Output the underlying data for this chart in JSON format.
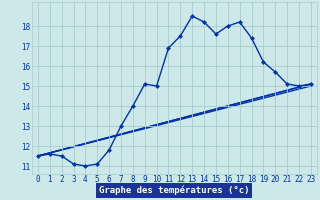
{
  "xlabel": "Graphe des températures (°c)",
  "bg_color": "#cce8e8",
  "grid_color": "#aacccc",
  "line_color": "#0033aa",
  "line_width": 1.0,
  "marker": "D",
  "marker_size": 2.5,
  "xlim": [
    -0.5,
    23.5
  ],
  "ylim": [
    10.6,
    19.2
  ],
  "xticks": [
    0,
    1,
    2,
    3,
    4,
    5,
    6,
    7,
    8,
    9,
    10,
    11,
    12,
    13,
    14,
    15,
    16,
    17,
    18,
    19,
    20,
    21,
    22,
    23
  ],
  "yticks": [
    11,
    12,
    13,
    14,
    15,
    16,
    17,
    18
  ],
  "main_x": [
    0,
    1,
    2,
    3,
    4,
    5,
    6,
    7,
    8,
    9,
    10,
    11,
    12,
    13,
    14,
    15,
    16,
    17,
    18,
    19,
    20,
    21,
    22,
    23
  ],
  "main_y": [
    11.5,
    11.6,
    11.5,
    11.1,
    11.0,
    11.1,
    11.8,
    13.0,
    14.0,
    15.1,
    15.0,
    16.9,
    17.5,
    18.5,
    18.2,
    17.6,
    18.0,
    18.2,
    17.4,
    16.2,
    15.7,
    15.1,
    15.0,
    15.1
  ],
  "diag_lines": [
    {
      "x": [
        0,
        23
      ],
      "y": [
        11.5,
        15.1
      ]
    },
    {
      "x": [
        0,
        23
      ],
      "y": [
        11.5,
        15.0
      ]
    },
    {
      "x": [
        0,
        23
      ],
      "y": [
        11.5,
        15.1
      ]
    }
  ],
  "xlabel_bg": "#1a3399",
  "xlabel_fg": "#ffffff",
  "xlabel_fontsize": 6.5,
  "tick_fontsize": 5.5
}
